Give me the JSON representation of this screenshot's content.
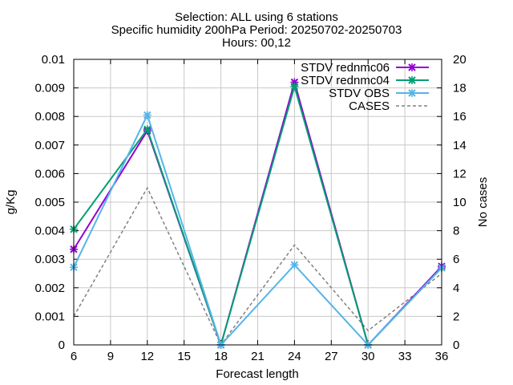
{
  "chart_data": {
    "type": "line",
    "title_lines": [
      "Selection: ALL using     6 stations",
      "Specific humidity 200hPa   Period: 20250702-20250703",
      "Hours: 00,12"
    ],
    "xlabel": "Forecast length",
    "ylabel": "g/Kg",
    "y2label": "No cases",
    "xlim": [
      6,
      36
    ],
    "ylim": [
      0,
      0.01
    ],
    "y2lim": [
      0,
      20
    ],
    "x_ticks": [
      "6",
      "9",
      "12",
      "15",
      "18",
      "21",
      "24",
      "27",
      "30",
      "33",
      "36"
    ],
    "y_ticks": [
      "0",
      "0.001",
      "0.002",
      "0.003",
      "0.004",
      "0.005",
      "0.006",
      "0.007",
      "0.008",
      "0.009",
      "0.01"
    ],
    "y2_ticks": [
      "0",
      "2",
      "4",
      "6",
      "8",
      "10",
      "12",
      "14",
      "16",
      "18",
      "20"
    ],
    "grid": true,
    "legend_position": "top-right",
    "x": [
      6,
      12,
      18,
      24,
      30,
      36
    ],
    "series": [
      {
        "name": "STDV rednmc06",
        "axis": "left",
        "color": "#9400d3",
        "style": "solid",
        "marker": "x",
        "values": [
          0.00335,
          0.0075,
          0.0,
          0.0092,
          0.0,
          0.00275
        ]
      },
      {
        "name": "STDV rednmc04",
        "axis": "left",
        "color": "#009e73",
        "style": "solid",
        "marker": "x",
        "values": [
          0.00405,
          0.00755,
          0.0,
          0.00905,
          0.0,
          0.0027
        ]
      },
      {
        "name": "STDV OBS",
        "axis": "left",
        "color": "#56b4e9",
        "style": "solid",
        "marker": "x",
        "values": [
          0.00272,
          0.00805,
          0.0,
          0.0028,
          0.0,
          0.0027
        ]
      },
      {
        "name": "CASES",
        "axis": "right",
        "color": "#808080",
        "style": "dashed",
        "marker": "none",
        "values": [
          2,
          11,
          0,
          7,
          1,
          5
        ]
      }
    ]
  }
}
